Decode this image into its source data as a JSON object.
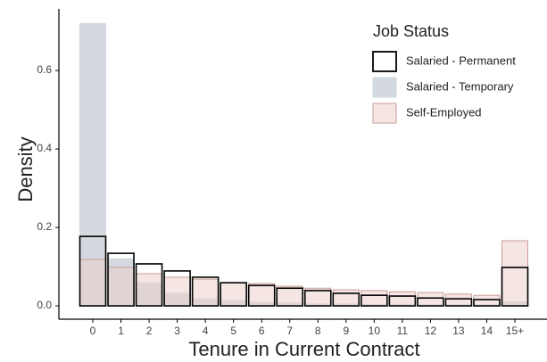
{
  "chart_data": {
    "type": "bar",
    "xlabel": "Tenure in Current Contract",
    "ylabel": "Density",
    "categories": [
      "0",
      "1",
      "2",
      "3",
      "4",
      "5",
      "6",
      "7",
      "8",
      "9",
      "10",
      "11",
      "12",
      "13",
      "14",
      "15+"
    ],
    "series": [
      {
        "name": "Salaried - Temporary",
        "fill": "#d3d9de",
        "edgecolor": "#d3d9de",
        "fill_opacity": 1,
        "values": [
          0.72,
          0.12,
          0.059,
          0.032,
          0.018,
          0.014,
          0.009,
          0.007,
          0.005,
          0.005,
          0.004,
          0.004,
          0.003,
          0.003,
          0.003,
          0.01
        ]
      },
      {
        "name": "Self-Employed",
        "fill": "#eccfcc",
        "edgecolor": "#c99d99",
        "fill_opacity": 0.55,
        "values": [
          0.118,
          0.098,
          0.082,
          0.073,
          0.068,
          0.059,
          0.057,
          0.05,
          0.045,
          0.041,
          0.039,
          0.036,
          0.034,
          0.03,
          0.027,
          0.166
        ]
      },
      {
        "name": "Salaried - Permanent",
        "fill": "none",
        "edgecolor": "#000000",
        "fill_opacity": 0,
        "values": [
          0.177,
          0.134,
          0.107,
          0.089,
          0.073,
          0.059,
          0.052,
          0.045,
          0.039,
          0.032,
          0.027,
          0.025,
          0.02,
          0.018,
          0.016,
          0.098
        ]
      }
    ],
    "legend_order": [
      2,
      0,
      1
    ],
    "legend_title": "Job Status",
    "legend_position": "upper right",
    "ylim": [
      -0.034,
      0.757
    ],
    "yticks": [
      {
        "value": 0,
        "label": "0.0"
      },
      0.2,
      0.4,
      0.6
    ]
  }
}
